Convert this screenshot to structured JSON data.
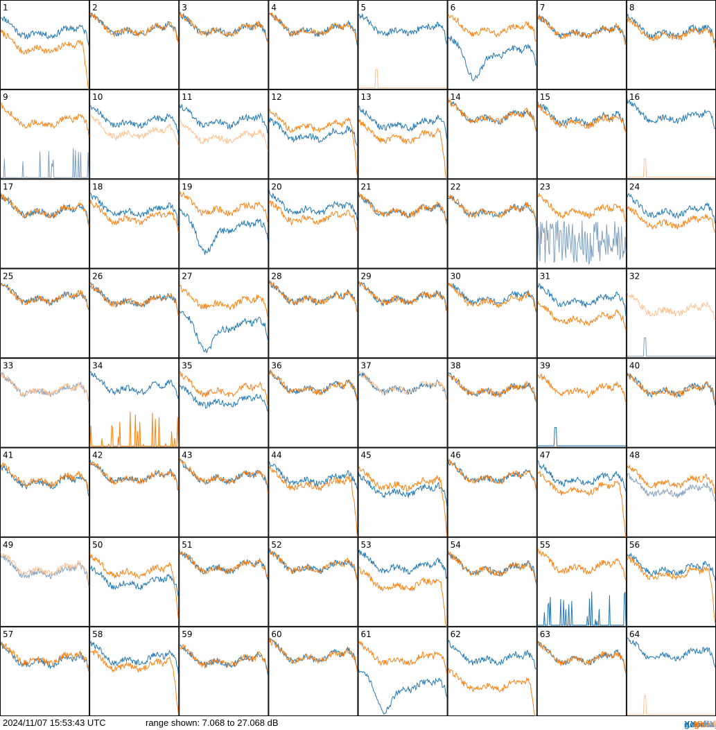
{
  "footer": {
    "timestamp": "2024/11/07 15:53:43 UTC",
    "range_text": "range shown: 7.068 to 27.068 dB"
  },
  "legend": [
    {
      "key": "good_xx",
      "prefix": "good",
      "suffix": "XX",
      "color": "#1f77b4"
    },
    {
      "key": "good_yy",
      "prefix": "good",
      "suffix": "YY",
      "color": "#ff7f0e"
    },
    {
      "key": "flagged_xx",
      "prefix": "flagged",
      "suffix": "XX",
      "color": "#7f9fbf"
    },
    {
      "key": "flagged_yy",
      "prefix": "flagged",
      "suffix": "YY",
      "color": "#ffbf8f"
    }
  ],
  "chart_data": {
    "type": "line",
    "grid": {
      "rows": 8,
      "cols": 8
    },
    "y_range_db": [
      7.068,
      27.068
    ],
    "x_points": 120,
    "colors": {
      "good_xx": "#1f77b4",
      "good_yy": "#ff7f0e",
      "flagged_xx": "#7f9fbf",
      "flagged_yy": "#ffbf8f"
    },
    "panels": [
      {
        "label": "1",
        "xx": "good",
        "yy": "good",
        "xx_level": 20.0,
        "yy_level": 16.5,
        "xx_shape": "normal",
        "yy_shape": "drop"
      },
      {
        "label": "2",
        "xx": "good",
        "yy": "good",
        "xx_level": 20.5,
        "yy_level": 20.5,
        "xx_shape": "normal",
        "yy_shape": "normal"
      },
      {
        "label": "3",
        "xx": "good",
        "yy": "good",
        "xx_level": 20.5,
        "yy_level": 20.5,
        "xx_shape": "normal",
        "yy_shape": "normal"
      },
      {
        "label": "4",
        "xx": "good",
        "yy": "good",
        "xx_level": 20.5,
        "yy_level": 20.5,
        "xx_shape": "normal",
        "yy_shape": "normal"
      },
      {
        "label": "5",
        "xx": "good",
        "yy": "flagged",
        "xx_level": 20.5,
        "yy_level": 7.5,
        "xx_shape": "normal",
        "yy_shape": "flat_spike"
      },
      {
        "label": "6",
        "xx": "good",
        "yy": "good",
        "xx_level": 15.5,
        "yy_level": 20.5,
        "xx_shape": "dip",
        "yy_shape": "normal"
      },
      {
        "label": "7",
        "xx": "good",
        "yy": "good",
        "xx_level": 20.0,
        "yy_level": 20.0,
        "xx_shape": "normal",
        "yy_shape": "normal"
      },
      {
        "label": "8",
        "xx": "good",
        "yy": "good",
        "xx_level": 20.0,
        "yy_level": 19.5,
        "xx_shape": "normal",
        "yy_shape": "normal"
      },
      {
        "label": "9",
        "xx": "flagged",
        "yy": "good",
        "xx_level": 8.0,
        "yy_level": 20.0,
        "xx_shape": "spiky_low",
        "yy_shape": "normal"
      },
      {
        "label": "10",
        "xx": "good",
        "yy": "flagged",
        "xx_level": 20.0,
        "yy_level": 17.5,
        "xx_shape": "normal",
        "yy_shape": "normal"
      },
      {
        "label": "11",
        "xx": "good",
        "yy": "flagged",
        "xx_level": 20.0,
        "yy_level": 16.5,
        "xx_shape": "normal",
        "yy_shape": "normal"
      },
      {
        "label": "12",
        "xx": "good",
        "yy": "good",
        "xx_level": 17.0,
        "yy_level": 19.0,
        "xx_shape": "normal",
        "yy_shape": "drop"
      },
      {
        "label": "13",
        "xx": "good",
        "yy": "good",
        "xx_level": 19.5,
        "yy_level": 16.5,
        "xx_shape": "normal",
        "yy_shape": "drop"
      },
      {
        "label": "14",
        "xx": "good",
        "yy": "good",
        "xx_level": 21.0,
        "yy_level": 21.0,
        "xx_shape": "normal",
        "yy_shape": "normal"
      },
      {
        "label": "15",
        "xx": "good",
        "yy": "good",
        "xx_level": 20.5,
        "yy_level": 20.0,
        "xx_shape": "normal",
        "yy_shape": "normal"
      },
      {
        "label": "16",
        "xx": "good",
        "yy": "flagged",
        "xx_level": 21.0,
        "yy_level": 7.5,
        "xx_shape": "normal",
        "yy_shape": "flat_spike"
      },
      {
        "label": "17",
        "xx": "good",
        "yy": "good",
        "xx_level": 20.0,
        "yy_level": 20.0,
        "xx_shape": "normal",
        "yy_shape": "normal"
      },
      {
        "label": "18",
        "xx": "good",
        "yy": "good",
        "xx_level": 20.0,
        "yy_level": 18.5,
        "xx_shape": "normal",
        "yy_shape": "normal"
      },
      {
        "label": "19",
        "xx": "good",
        "yy": "good",
        "xx_level": 16.5,
        "yy_level": 20.5,
        "xx_shape": "dip",
        "yy_shape": "normal"
      },
      {
        "label": "20",
        "xx": "good",
        "yy": "good",
        "xx_level": 20.5,
        "yy_level": 18.5,
        "xx_shape": "normal",
        "yy_shape": "normal"
      },
      {
        "label": "21",
        "xx": "good",
        "yy": "good",
        "xx_level": 20.0,
        "yy_level": 20.0,
        "xx_shape": "normal",
        "yy_shape": "normal"
      },
      {
        "label": "22",
        "xx": "good",
        "yy": "good",
        "xx_level": 20.0,
        "yy_level": 20.0,
        "xx_shape": "normal",
        "yy_shape": "normal"
      },
      {
        "label": "23",
        "xx": "flagged",
        "yy": "good",
        "xx_level": 13.0,
        "yy_level": 20.0,
        "xx_shape": "spiky_high",
        "yy_shape": "normal"
      },
      {
        "label": "24",
        "xx": "good",
        "yy": "good",
        "xx_level": 20.0,
        "yy_level": 17.5,
        "xx_shape": "normal",
        "yy_shape": "normal"
      },
      {
        "label": "25",
        "xx": "good",
        "yy": "good",
        "xx_level": 20.5,
        "yy_level": 20.5,
        "xx_shape": "normal",
        "yy_shape": "normal"
      },
      {
        "label": "26",
        "xx": "good",
        "yy": "good",
        "xx_level": 20.0,
        "yy_level": 20.0,
        "xx_shape": "normal",
        "yy_shape": "normal"
      },
      {
        "label": "27",
        "xx": "good",
        "yy": "good",
        "xx_level": 14.5,
        "yy_level": 19.5,
        "xx_shape": "dip",
        "yy_shape": "normal"
      },
      {
        "label": "28",
        "xx": "good",
        "yy": "good",
        "xx_level": 20.5,
        "yy_level": 20.5,
        "xx_shape": "normal",
        "yy_shape": "normal"
      },
      {
        "label": "29",
        "xx": "good",
        "yy": "good",
        "xx_level": 20.5,
        "yy_level": 20.5,
        "xx_shape": "normal",
        "yy_shape": "normal"
      },
      {
        "label": "30",
        "xx": "good",
        "yy": "good",
        "xx_level": 20.5,
        "yy_level": 20.0,
        "xx_shape": "normal",
        "yy_shape": "normal"
      },
      {
        "label": "31",
        "xx": "good",
        "yy": "good",
        "xx_level": 20.0,
        "yy_level": 16.0,
        "xx_shape": "normal",
        "yy_shape": "normal"
      },
      {
        "label": "32",
        "xx": "flagged",
        "yy": "flagged",
        "xx_level": 7.5,
        "yy_level": 18.0,
        "xx_shape": "flat_spike",
        "yy_shape": "normal"
      },
      {
        "label": "33",
        "xx": "flagged",
        "yy": "flagged",
        "xx_level": 20.0,
        "yy_level": 20.0,
        "xx_shape": "normal",
        "yy_shape": "normal"
      },
      {
        "label": "34",
        "xx": "good",
        "yy": "good",
        "xx_level": 20.5,
        "yy_level": 8.0,
        "xx_shape": "normal",
        "yy_shape": "spiky_low"
      },
      {
        "label": "35",
        "xx": "good",
        "yy": "good",
        "xx_level": 17.5,
        "yy_level": 20.0,
        "xx_shape": "normal",
        "yy_shape": "normal"
      },
      {
        "label": "36",
        "xx": "good",
        "yy": "good",
        "xx_level": 20.5,
        "yy_level": 20.5,
        "xx_shape": "normal",
        "yy_shape": "normal"
      },
      {
        "label": "37",
        "xx": "good",
        "yy": "flagged",
        "xx_level": 20.5,
        "yy_level": 20.5,
        "xx_shape": "normal",
        "yy_shape": "normal"
      },
      {
        "label": "38",
        "xx": "good",
        "yy": "good",
        "xx_level": 20.0,
        "yy_level": 20.0,
        "xx_shape": "normal",
        "yy_shape": "normal"
      },
      {
        "label": "39",
        "xx": "good",
        "yy": "good",
        "xx_level": 7.5,
        "yy_level": 20.0,
        "xx_shape": "flat_spike",
        "yy_shape": "normal"
      },
      {
        "label": "40",
        "xx": "good",
        "yy": "good",
        "xx_level": 20.0,
        "yy_level": 20.0,
        "xx_shape": "normal",
        "yy_shape": "normal"
      },
      {
        "label": "41",
        "xx": "good",
        "yy": "good",
        "xx_level": 19.5,
        "yy_level": 20.0,
        "xx_shape": "normal",
        "yy_shape": "normal"
      },
      {
        "label": "42",
        "xx": "good",
        "yy": "good",
        "xx_level": 20.5,
        "yy_level": 20.5,
        "xx_shape": "normal",
        "yy_shape": "normal"
      },
      {
        "label": "43",
        "xx": "good",
        "yy": "good",
        "xx_level": 20.5,
        "yy_level": 20.5,
        "xx_shape": "normal",
        "yy_shape": "normal"
      },
      {
        "label": "44",
        "xx": "good",
        "yy": "good",
        "xx_level": 20.0,
        "yy_level": 19.0,
        "xx_shape": "normal",
        "yy_shape": "drop"
      },
      {
        "label": "45",
        "xx": "good",
        "yy": "good",
        "xx_level": 17.5,
        "yy_level": 19.0,
        "xx_shape": "normal",
        "yy_shape": "drop"
      },
      {
        "label": "46",
        "xx": "good",
        "yy": "good",
        "xx_level": 20.5,
        "yy_level": 20.5,
        "xx_shape": "normal",
        "yy_shape": "normal"
      },
      {
        "label": "47",
        "xx": "good",
        "yy": "good",
        "xx_level": 20.0,
        "yy_level": 18.0,
        "xx_shape": "normal",
        "yy_shape": "drop"
      },
      {
        "label": "48",
        "xx": "flagged",
        "yy": "good",
        "xx_level": 17.5,
        "yy_level": 19.5,
        "xx_shape": "normal",
        "yy_shape": "normal"
      },
      {
        "label": "49",
        "xx": "flagged",
        "yy": "flagged",
        "xx_level": 19.5,
        "yy_level": 20.0,
        "xx_shape": "normal",
        "yy_shape": "normal"
      },
      {
        "label": "50",
        "xx": "good",
        "yy": "good",
        "xx_level": 17.0,
        "yy_level": 19.5,
        "xx_shape": "normal",
        "yy_shape": "drop"
      },
      {
        "label": "51",
        "xx": "good",
        "yy": "good",
        "xx_level": 20.5,
        "yy_level": 20.5,
        "xx_shape": "normal",
        "yy_shape": "normal"
      },
      {
        "label": "52",
        "xx": "good",
        "yy": "good",
        "xx_level": 20.5,
        "yy_level": 20.5,
        "xx_shape": "normal",
        "yy_shape": "normal"
      },
      {
        "label": "53",
        "xx": "good",
        "yy": "good",
        "xx_level": 20.5,
        "yy_level": 16.5,
        "xx_shape": "normal",
        "yy_shape": "drop"
      },
      {
        "label": "54",
        "xx": "good",
        "yy": "good",
        "xx_level": 20.0,
        "yy_level": 20.0,
        "xx_shape": "normal",
        "yy_shape": "normal"
      },
      {
        "label": "55",
        "xx": "good",
        "yy": "good",
        "xx_level": 9.0,
        "yy_level": 20.5,
        "xx_shape": "spiky_low",
        "yy_shape": "normal"
      },
      {
        "label": "56",
        "xx": "good",
        "yy": "good",
        "xx_level": 20.0,
        "yy_level": 19.0,
        "xx_shape": "normal",
        "yy_shape": "drop"
      },
      {
        "label": "57",
        "xx": "good",
        "yy": "good",
        "xx_level": 19.5,
        "yy_level": 20.0,
        "xx_shape": "normal",
        "yy_shape": "normal"
      },
      {
        "label": "58",
        "xx": "good",
        "yy": "good",
        "xx_level": 20.0,
        "yy_level": 18.5,
        "xx_shape": "normal",
        "yy_shape": "drop"
      },
      {
        "label": "59",
        "xx": "good",
        "yy": "good",
        "xx_level": 19.5,
        "yy_level": 19.5,
        "xx_shape": "normal",
        "yy_shape": "normal"
      },
      {
        "label": "60",
        "xx": "good",
        "yy": "good",
        "xx_level": 20.5,
        "yy_level": 20.5,
        "xx_shape": "normal",
        "yy_shape": "normal"
      },
      {
        "label": "61",
        "xx": "good",
        "yy": "good",
        "xx_level": 14.0,
        "yy_level": 20.0,
        "xx_shape": "dip",
        "yy_shape": "normal"
      },
      {
        "label": "62",
        "xx": "good",
        "yy": "good",
        "xx_level": 20.0,
        "yy_level": 14.0,
        "xx_shape": "normal",
        "yy_shape": "drop"
      },
      {
        "label": "63",
        "xx": "good",
        "yy": "good",
        "xx_level": 20.0,
        "yy_level": 20.0,
        "xx_shape": "normal",
        "yy_shape": "normal"
      },
      {
        "label": "64",
        "xx": "good",
        "yy": "flagged",
        "xx_level": 21.0,
        "yy_level": 7.5,
        "xx_shape": "normal",
        "yy_shape": "flat_spike"
      }
    ]
  }
}
